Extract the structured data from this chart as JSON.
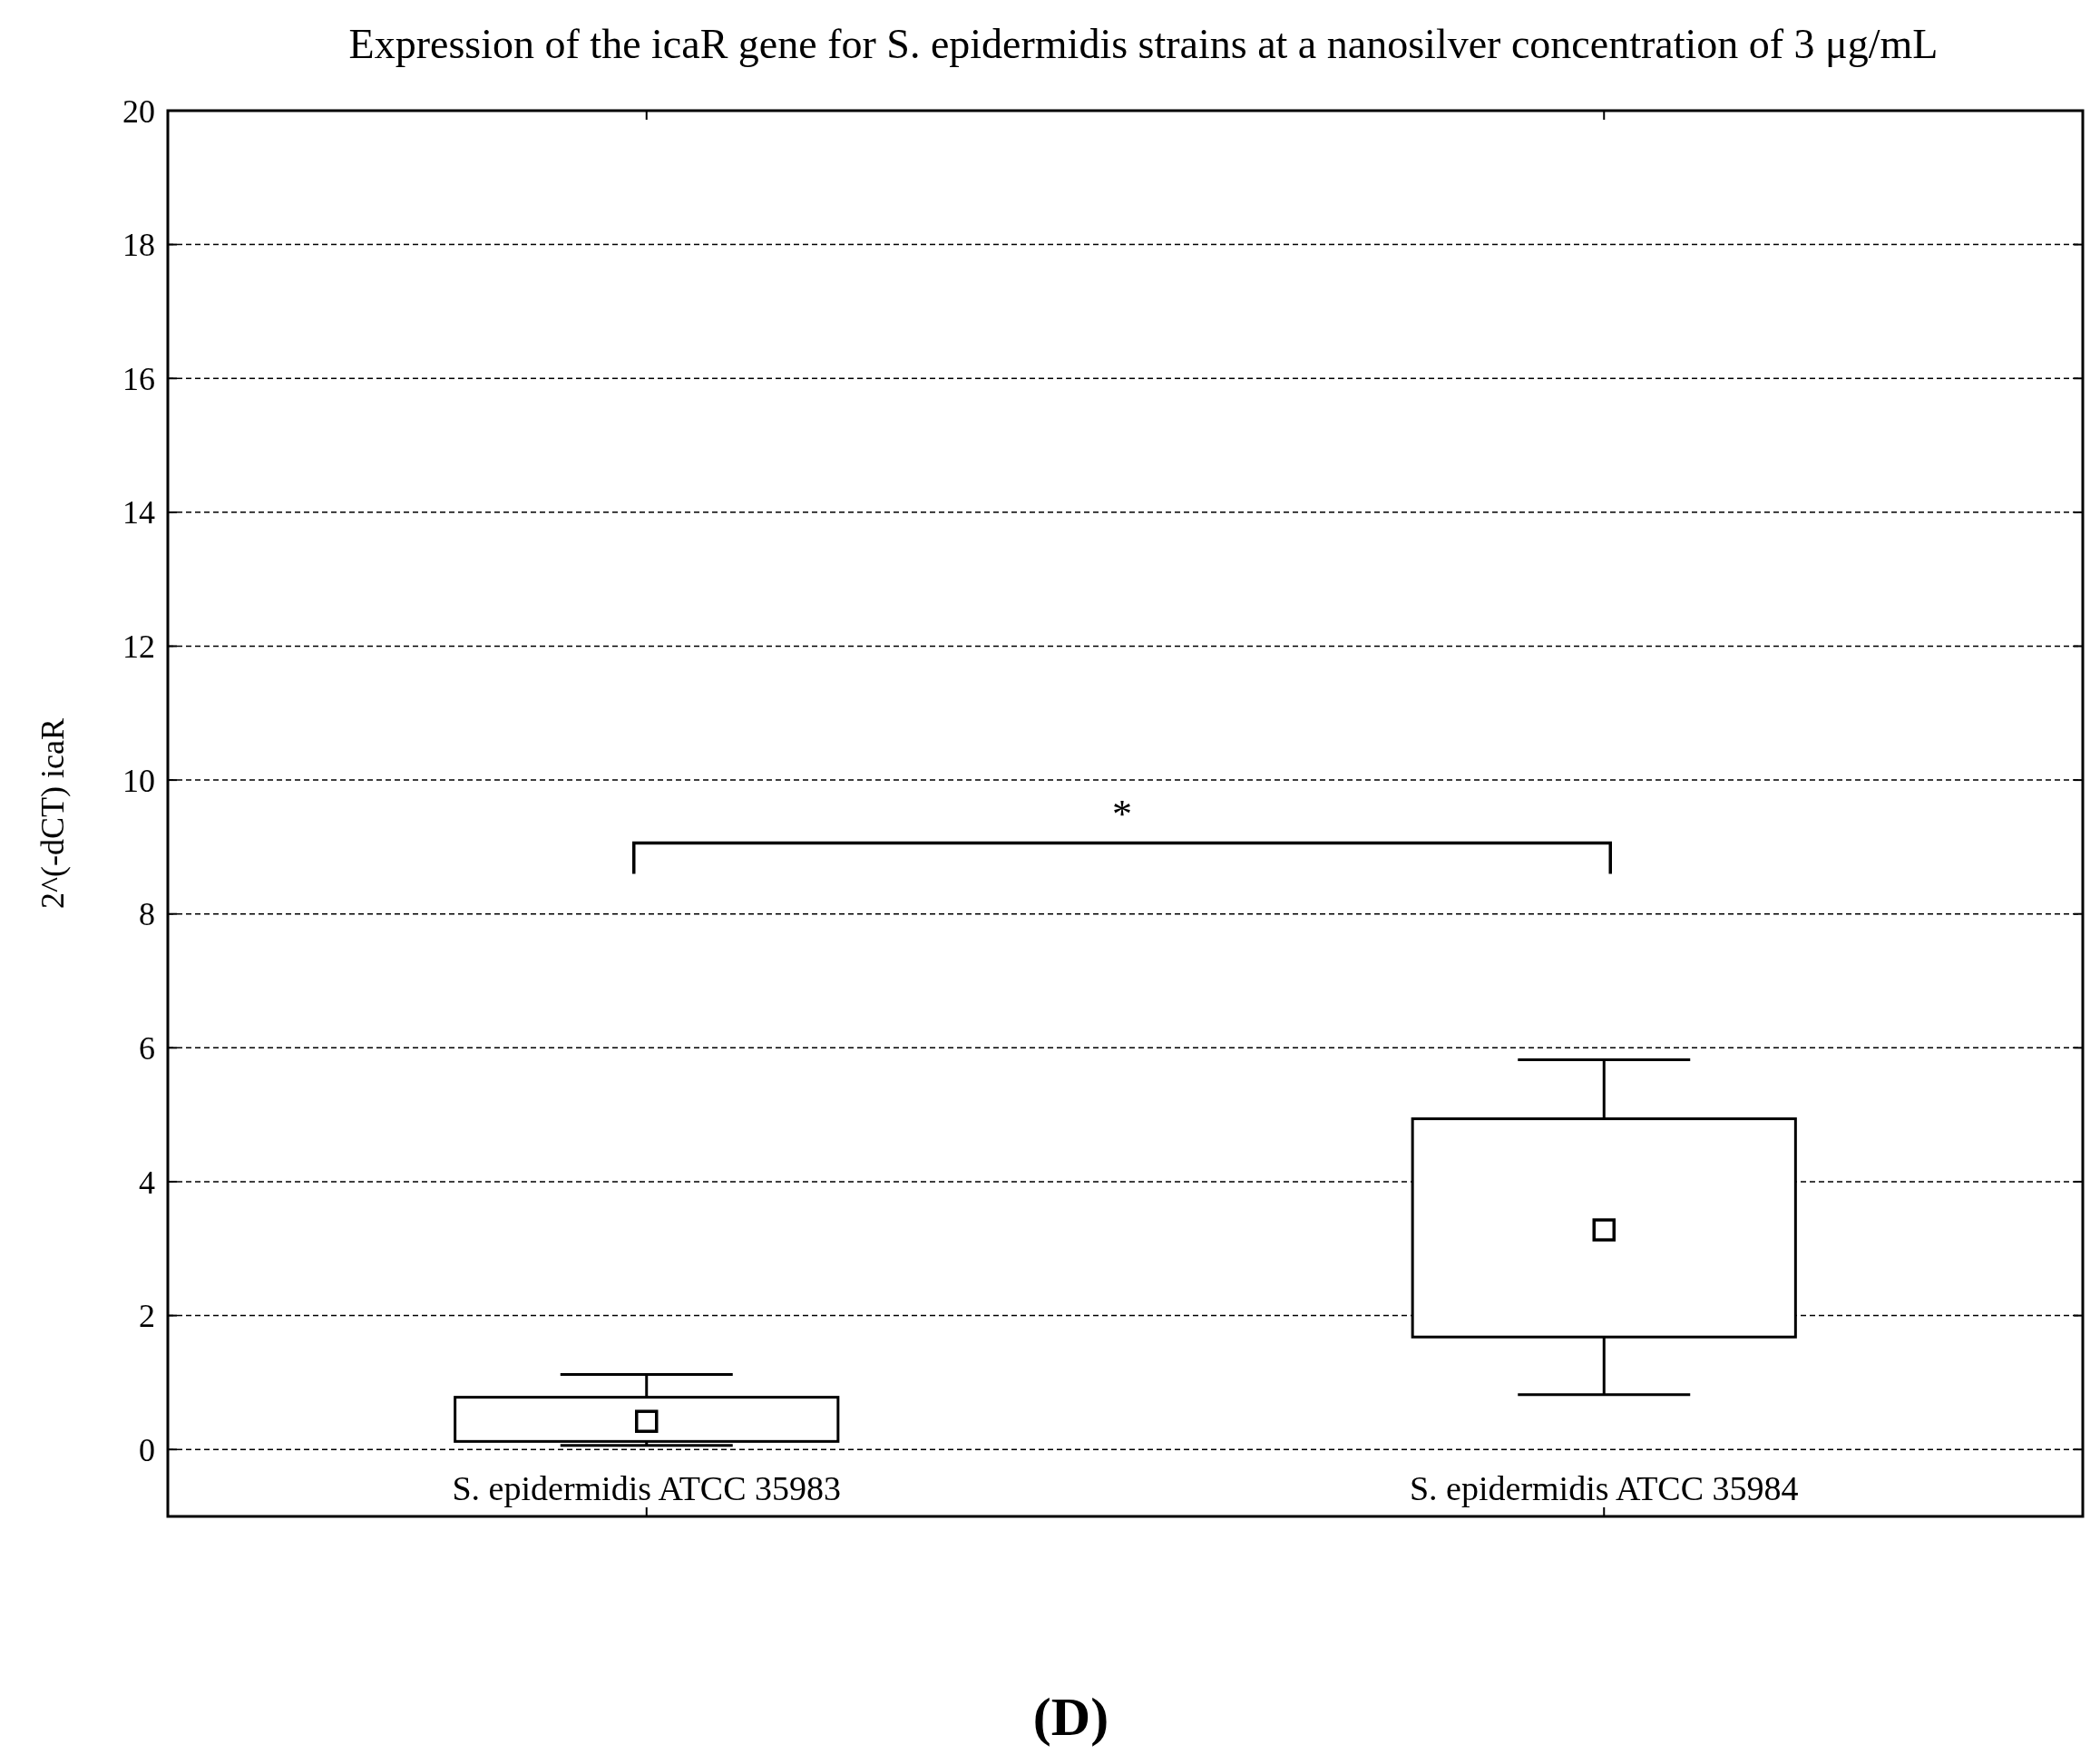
{
  "chart_data": {
    "type": "box",
    "title": "Expression of the icaR gene for S. epidermidis  strains at a nanosilver concentration of 3 μg/mL",
    "ylabel": "2^(-dCT) icaR",
    "categories": [
      "S. epidermidis  ATCC 35983",
      "S. epidermidis  ATCC 35984"
    ],
    "boxes": [
      {
        "low": 0.06,
        "q1": 0.12,
        "median": 0.42,
        "q3": 0.78,
        "high": 1.12
      },
      {
        "low": 0.82,
        "q1": 1.68,
        "median": 3.28,
        "q3": 4.94,
        "high": 5.82
      }
    ],
    "ylim": [
      -1,
      20
    ],
    "yticks": [
      0,
      2,
      4,
      6,
      8,
      10,
      12,
      14,
      16,
      18,
      20
    ],
    "grid": "y",
    "annotations": [
      "*",
      "(D)"
    ]
  }
}
